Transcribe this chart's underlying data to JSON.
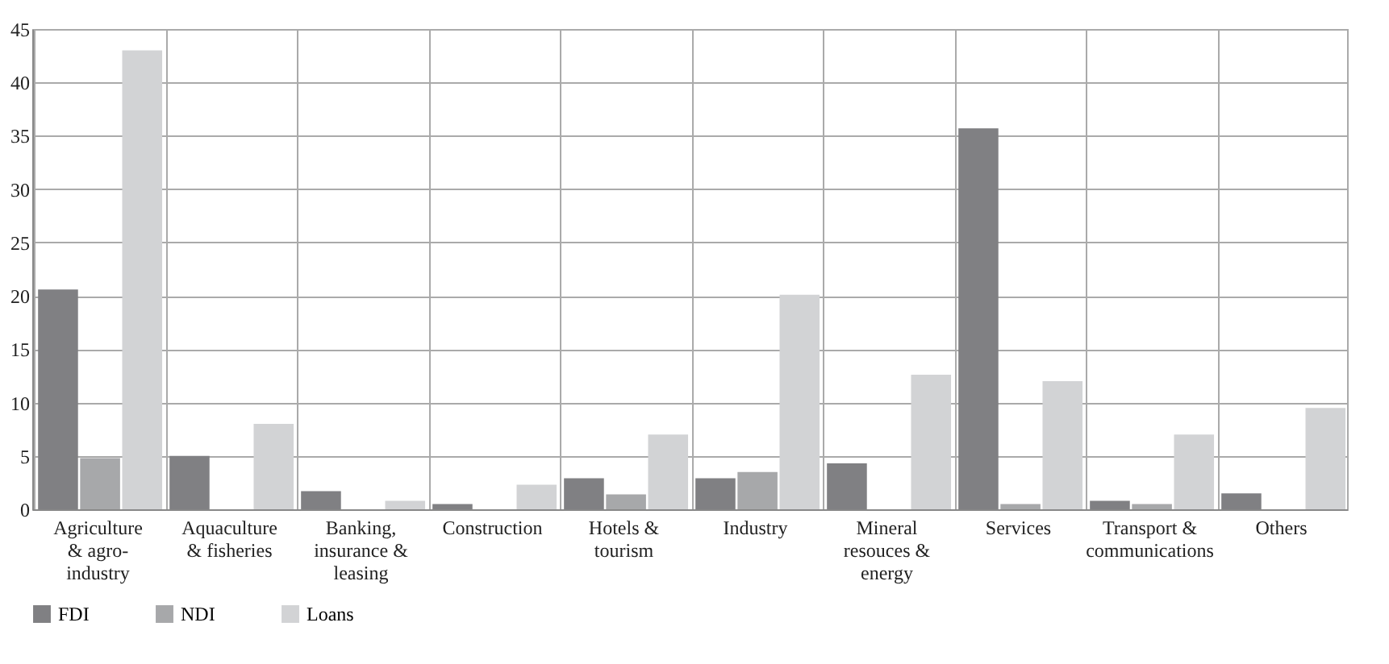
{
  "chart_data": {
    "type": "bar",
    "categories": [
      "Agriculture & agro-industry",
      "Aquaculture & fisheries",
      "Banking, insurance & leasing",
      "Construction",
      "Hotels & tourism",
      "Industry",
      "Mineral resouces & energy",
      "Services",
      "Transport & communications",
      "Others"
    ],
    "series": [
      {
        "name": "FDI",
        "color": "#808083",
        "values": [
          20.6,
          5.0,
          1.7,
          0.5,
          2.9,
          2.9,
          4.3,
          35.7,
          0.8,
          1.5
        ]
      },
      {
        "name": "NDI",
        "color": "#a7a8aa",
        "values": [
          4.8,
          0,
          0,
          0,
          1.4,
          3.5,
          0,
          0.5,
          0.5,
          0
        ]
      },
      {
        "name": "Loans",
        "color": "#d2d3d5",
        "values": [
          43,
          8.0,
          0.8,
          2.3,
          7.0,
          20.1,
          12.6,
          12.0,
          7.0,
          9.5
        ]
      }
    ],
    "ylim": [
      0,
      45
    ],
    "yticks": [
      0,
      5,
      10,
      15,
      20,
      25,
      30,
      35,
      40,
      45
    ],
    "grid": true,
    "legend": "bottom left"
  }
}
